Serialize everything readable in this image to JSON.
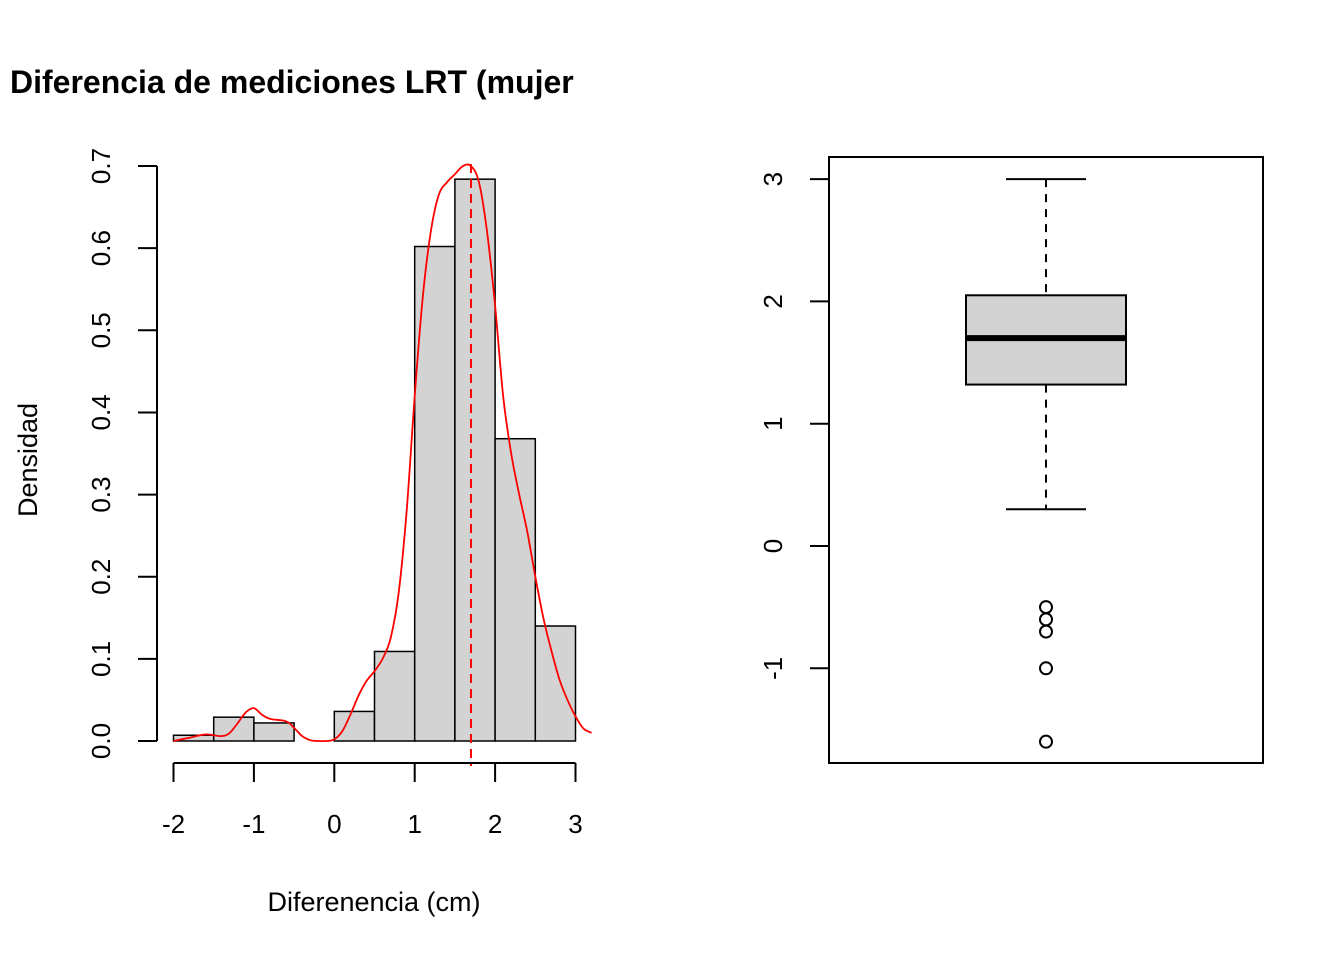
{
  "chart_data": [
    {
      "type": "bar",
      "subtype": "histogram-with-density",
      "title": "Diferencia de mediciones LRT (mujer",
      "xlabel": "Diferenencia (cm)",
      "ylabel": "Densidad",
      "xlim": [
        -2,
        3.2
      ],
      "ylim": [
        0,
        0.7
      ],
      "x_ticks": [
        "-2",
        "-1",
        "0",
        "1",
        "2",
        "3"
      ],
      "y_ticks": [
        "0.0",
        "0.1",
        "0.2",
        "0.3",
        "0.4",
        "0.5",
        "0.6",
        "0.7"
      ],
      "bins": [
        {
          "from": -2.0,
          "to": -1.5,
          "density": 0.007
        },
        {
          "from": -1.5,
          "to": -1.0,
          "density": 0.029
        },
        {
          "from": -1.0,
          "to": -0.5,
          "density": 0.022
        },
        {
          "from": -0.5,
          "to": 0.0,
          "density": 0.0
        },
        {
          "from": 0.0,
          "to": 0.5,
          "density": 0.036
        },
        {
          "from": 0.5,
          "to": 1.0,
          "density": 0.109
        },
        {
          "from": 1.0,
          "to": 1.5,
          "density": 0.602
        },
        {
          "from": 1.5,
          "to": 2.0,
          "density": 0.684
        },
        {
          "from": 2.0,
          "to": 2.5,
          "density": 0.368
        },
        {
          "from": 2.5,
          "to": 3.0,
          "density": 0.14
        }
      ],
      "density_curve": {
        "x": [
          -2.0,
          -1.8,
          -1.6,
          -1.4,
          -1.3,
          -1.2,
          -1.1,
          -1.0,
          -0.9,
          -0.8,
          -0.6,
          -0.5,
          -0.4,
          -0.3,
          -0.2,
          -0.1,
          0.0,
          0.1,
          0.2,
          0.3,
          0.4,
          0.5,
          0.6,
          0.7,
          0.8,
          0.9,
          1.0,
          1.1,
          1.2,
          1.3,
          1.4,
          1.5,
          1.6,
          1.7,
          1.8,
          1.9,
          2.0,
          2.1,
          2.2,
          2.3,
          2.4,
          2.5,
          2.6,
          2.7,
          2.8,
          2.9,
          3.0,
          3.1,
          3.2
        ],
        "y": [
          0.0,
          0.004,
          0.008,
          0.006,
          0.01,
          0.022,
          0.035,
          0.04,
          0.032,
          0.027,
          0.024,
          0.016,
          0.006,
          0.001,
          0.0,
          0.0,
          0.002,
          0.012,
          0.032,
          0.055,
          0.073,
          0.085,
          0.1,
          0.125,
          0.18,
          0.28,
          0.42,
          0.54,
          0.62,
          0.665,
          0.68,
          0.69,
          0.7,
          0.7,
          0.68,
          0.62,
          0.53,
          0.42,
          0.35,
          0.3,
          0.255,
          0.2,
          0.15,
          0.11,
          0.075,
          0.05,
          0.03,
          0.015,
          0.01
        ],
        "color": "#ff0000"
      },
      "mean_line_x": 1.7,
      "bar_fill": "#d3d3d3"
    },
    {
      "type": "box",
      "ylim": [
        -1.6,
        3.0
      ],
      "y_ticks": [
        "-1",
        "0",
        "1",
        "2",
        "3"
      ],
      "whisker_low": 0.3,
      "q1": 1.32,
      "median": 1.7,
      "q3": 2.05,
      "whisker_high": 3.0,
      "outliers": [
        -0.5,
        -0.6,
        -0.7,
        -1.0,
        -1.6
      ],
      "box_fill": "#d3d3d3"
    }
  ]
}
